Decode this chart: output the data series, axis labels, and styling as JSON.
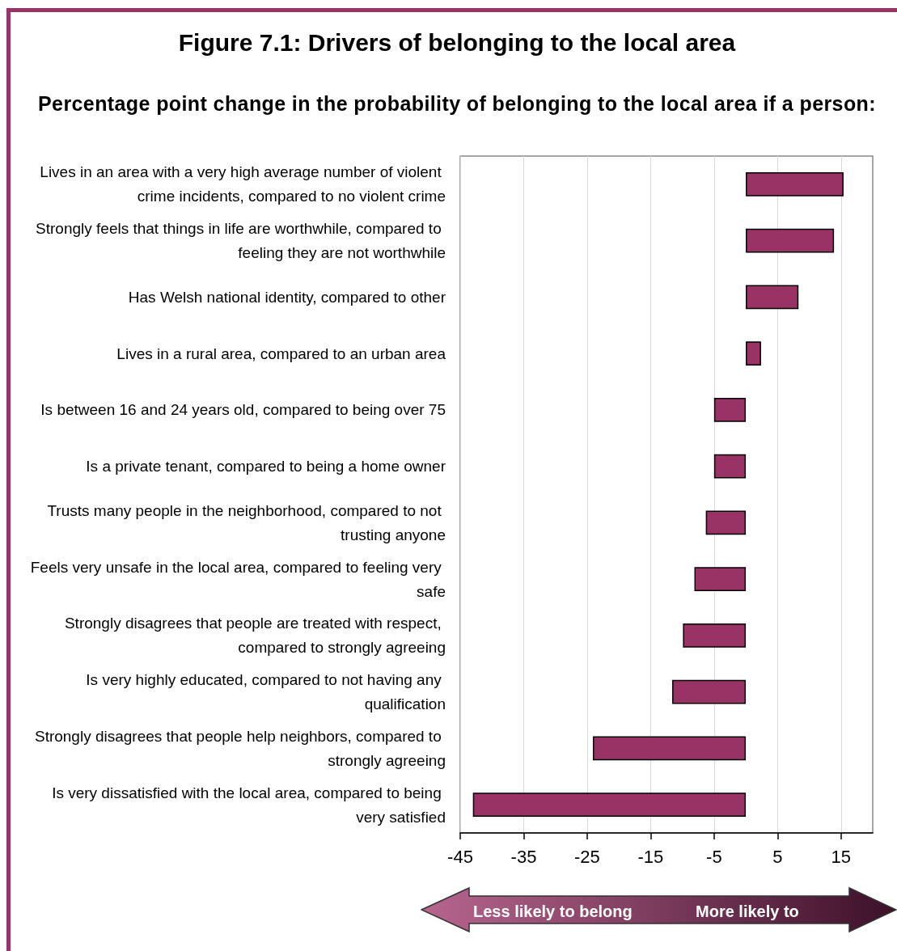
{
  "chart_data": {
    "type": "bar",
    "orientation": "horizontal",
    "title": "Figure 7.1: Drivers of belonging to the local area",
    "subtitle": "Percentage point change in the probability of belonging to the local area if a person:",
    "categories": [
      "Lives in an area with a very high average number of violent crime incidents, compared to no violent crime",
      "Strongly feels that things in life are worthwhile, compared to feeling they are not worthwhile",
      "Has Welsh national identity, compared to other",
      "Lives in a rural area, compared to an urban area",
      "Is between 16 and 24 years old, compared to being over 75",
      "Is a private tenant, compared to being a home owner",
      "Trusts many people in the neighborhood, compared to not trusting anyone",
      "Feels very unsafe in the local area, compared to feeling very safe",
      "Strongly disagrees that people are treated with respect, compared to strongly agreeing",
      "Is very highly educated, compared to not having any qualification",
      "Strongly disagrees that people help neighbors, compared to strongly agreeing",
      "Is very dissatisfied with the local area, compared to being very satisfied"
    ],
    "values": [
      15.4,
      13.9,
      8.3,
      2.4,
      -5.0,
      -5.0,
      -6.3,
      -8.1,
      -9.9,
      -11.6,
      -24.1,
      -43.0
    ],
    "color": "#993366",
    "xlim": [
      -45,
      20
    ],
    "xticks": [
      -45,
      -35,
      -25,
      -15,
      -5,
      5,
      15
    ],
    "grid": "x",
    "annotations": [
      "Less likely to belong",
      "More likely to"
    ]
  }
}
